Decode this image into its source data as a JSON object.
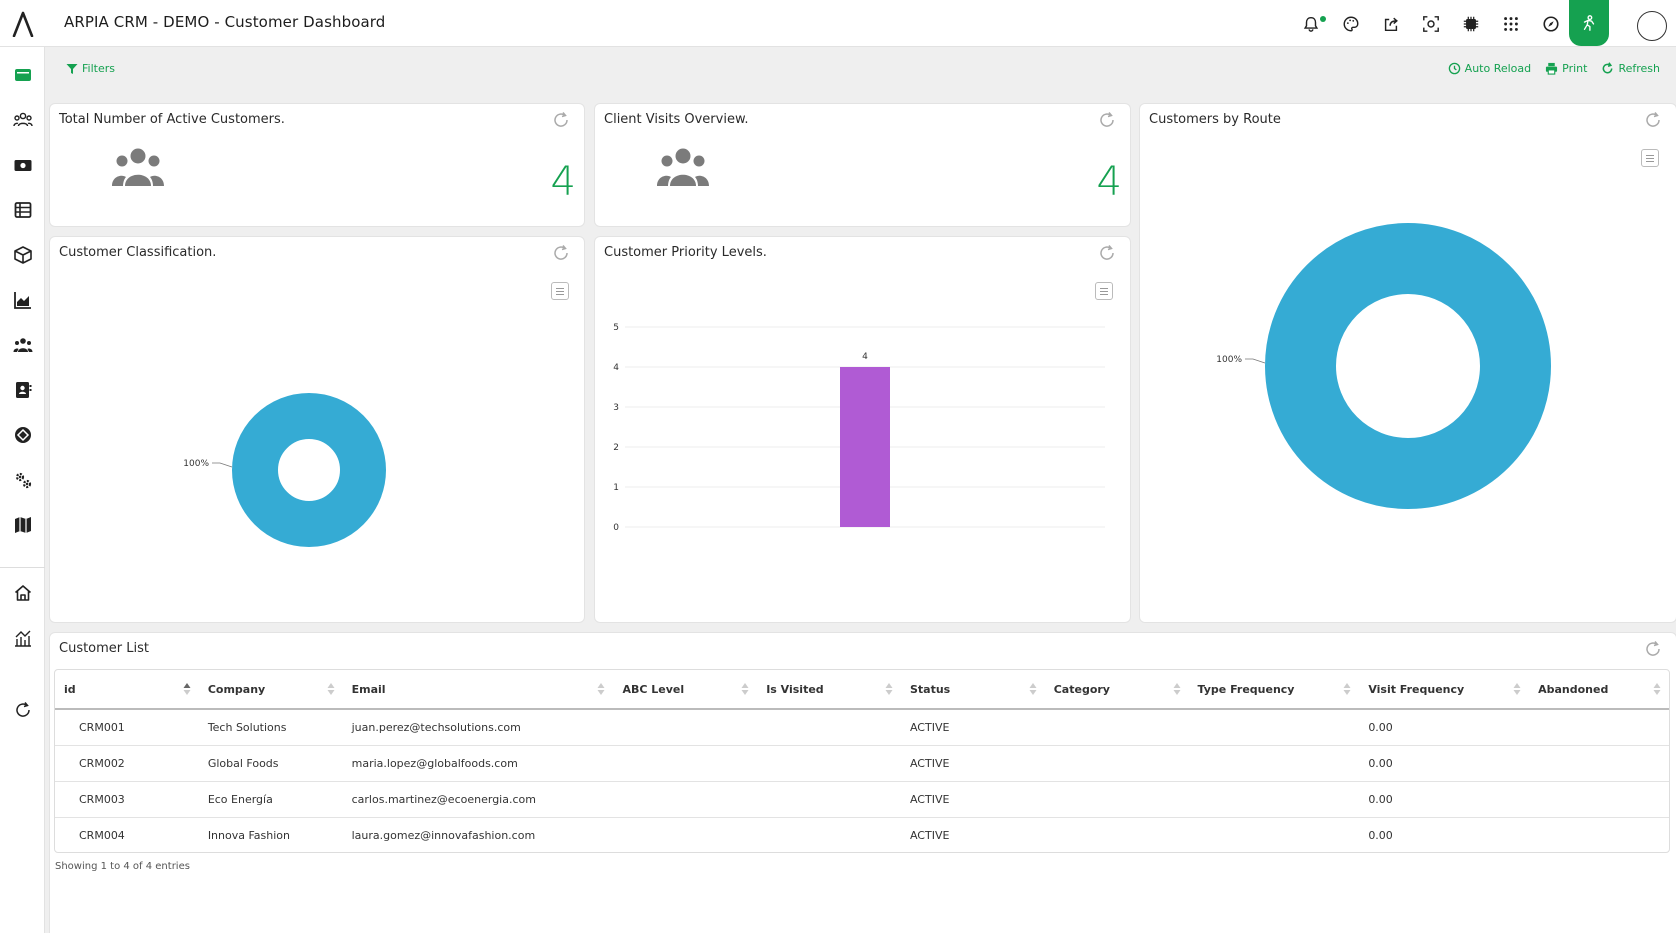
{
  "header": {
    "title": "ARPIA CRM - DEMO - Customer Dashboard",
    "accent": "#15a150"
  },
  "toolbar": {
    "filters_label": "Filters",
    "auto_reload_label": "Auto Reload",
    "print_label": "Print",
    "refresh_label": "Refresh"
  },
  "panels": {
    "active_customers": {
      "title": "Total Number of Active Customers.",
      "value": "4",
      "icon": "users-icon"
    },
    "client_visits": {
      "title": "Client Visits Overview.",
      "value": "4",
      "icon": "users-icon"
    },
    "customers_by_route": {
      "title": "Customers by Route"
    },
    "classification": {
      "title": "Customer Classification."
    },
    "priority": {
      "title": "Customer Priority Levels."
    },
    "customer_list": {
      "title": "Customer List"
    }
  },
  "chart_data": [
    {
      "type": "pie",
      "title": "Customer Classification.",
      "donut": true,
      "slices": [
        {
          "label": "100%",
          "value": 100,
          "color": "#35abd4"
        }
      ]
    },
    {
      "type": "bar",
      "title": "Customer Priority Levels.",
      "categories": [
        ""
      ],
      "values": [
        4
      ],
      "data_labels": [
        "4"
      ],
      "ylim": [
        0,
        5
      ],
      "yticks": [
        "0",
        "1",
        "2",
        "3",
        "4",
        "5"
      ],
      "color": "#b05bd4",
      "grid": true
    },
    {
      "type": "pie",
      "title": "Customers by Route",
      "donut": true,
      "slices": [
        {
          "label": "100%",
          "value": 100,
          "color": "#35abd4"
        }
      ]
    }
  ],
  "table": {
    "columns": [
      "id",
      "Company",
      "Email",
      "ABC Level",
      "Is Visited",
      "Status",
      "Category",
      "Type Frequency",
      "Visit Frequency",
      "Abandoned"
    ],
    "rows": [
      [
        "CRM001",
        "Tech Solutions",
        "juan.perez@techsolutions.com",
        "",
        "",
        "ACTIVE",
        "",
        "",
        "0.00",
        ""
      ],
      [
        "CRM002",
        "Global Foods",
        "maria.lopez@globalfoods.com",
        "",
        "",
        "ACTIVE",
        "",
        "",
        "0.00",
        ""
      ],
      [
        "CRM003",
        "Eco Energía",
        "carlos.martinez@ecoenergia.com",
        "",
        "",
        "ACTIVE",
        "",
        "",
        "0.00",
        ""
      ],
      [
        "CRM004",
        "Innova Fashion",
        "laura.gomez@innovafashion.com",
        "",
        "",
        "ACTIVE",
        "",
        "",
        "0.00",
        ""
      ]
    ],
    "info": "Showing 1 to 4 of 4 entries"
  }
}
